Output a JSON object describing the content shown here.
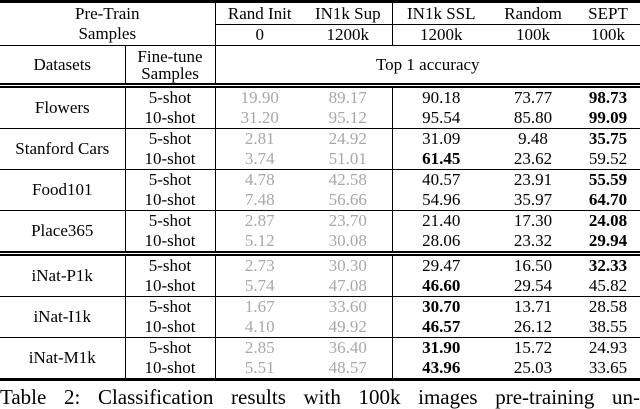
{
  "colors": {
    "text": "#000000",
    "dim_text": "#a8a8a8",
    "rule": "#000000",
    "background": "#ffffff"
  },
  "table": {
    "header": {
      "pretrain_line1": "Pre-Train",
      "pretrain_line2": "Samples",
      "methods": [
        {
          "name": "Rand Init",
          "samples": "0"
        },
        {
          "name": "IN1k Sup",
          "samples": "1200k"
        },
        {
          "name": "IN1k SSL",
          "samples": "1200k"
        },
        {
          "name": "Random",
          "samples": "100k"
        },
        {
          "name": "SEPT",
          "samples": "100k"
        }
      ],
      "datasets_label": "Datasets",
      "finetune_line1": "Fine-tune",
      "finetune_line2": "Samples",
      "metric_label": "Top 1 accuracy"
    },
    "groups": [
      {
        "dataset": "Flowers",
        "double_rule_above": false,
        "rows": [
          {
            "shot": "5-shot",
            "values": [
              "19.90",
              "89.17",
              "90.18",
              "73.77",
              "98.73"
            ],
            "bold_index": 4
          },
          {
            "shot": "10-shot",
            "values": [
              "31.20",
              "95.12",
              "95.54",
              "85.80",
              "99.09"
            ],
            "bold_index": 4
          }
        ]
      },
      {
        "dataset": "Stanford Cars",
        "double_rule_above": false,
        "rows": [
          {
            "shot": "5-shot",
            "values": [
              "2.81",
              "24.92",
              "31.09",
              "9.48",
              "35.75"
            ],
            "bold_index": 4
          },
          {
            "shot": "10-shot",
            "values": [
              "3.74",
              "51.01",
              "61.45",
              "23.62",
              "59.52"
            ],
            "bold_index": 2
          }
        ]
      },
      {
        "dataset": "Food101",
        "double_rule_above": false,
        "rows": [
          {
            "shot": "5-shot",
            "values": [
              "4.78",
              "42.58",
              "40.57",
              "23.91",
              "55.59"
            ],
            "bold_index": 4
          },
          {
            "shot": "10-shot",
            "values": [
              "7.48",
              "56.66",
              "54.96",
              "35.97",
              "64.70"
            ],
            "bold_index": 4
          }
        ]
      },
      {
        "dataset": "Place365",
        "double_rule_above": false,
        "rows": [
          {
            "shot": "5-shot",
            "values": [
              "2.87",
              "23.70",
              "21.40",
              "17.30",
              "24.08"
            ],
            "bold_index": 4
          },
          {
            "shot": "10-shot",
            "values": [
              "5.12",
              "30.08",
              "28.06",
              "23.32",
              "29.94"
            ],
            "bold_index": 4
          }
        ]
      },
      {
        "dataset": "iNat-P1k",
        "double_rule_above": true,
        "rows": [
          {
            "shot": "5-shot",
            "values": [
              "2.73",
              "30.30",
              "29.47",
              "16.50",
              "32.33"
            ],
            "bold_index": 4
          },
          {
            "shot": "10-shot",
            "values": [
              "5.74",
              "47.08",
              "46.60",
              "29.54",
              "45.82"
            ],
            "bold_index": 2
          }
        ]
      },
      {
        "dataset": "iNat-I1k",
        "double_rule_above": false,
        "rows": [
          {
            "shot": "5-shot",
            "values": [
              "1.67",
              "33.60",
              "30.70",
              "13.71",
              "28.58"
            ],
            "bold_index": 2
          },
          {
            "shot": "10-shot",
            "values": [
              "4.10",
              "49.92",
              "46.57",
              "26.12",
              "38.55"
            ],
            "bold_index": 2
          }
        ]
      },
      {
        "dataset": "iNat-M1k",
        "double_rule_above": false,
        "rows": [
          {
            "shot": "5-shot",
            "values": [
              "2.85",
              "36.40",
              "31.90",
              "15.72",
              "24.93"
            ],
            "bold_index": 2
          },
          {
            "shot": "10-shot",
            "values": [
              "5.51",
              "48.57",
              "43.96",
              "25.03",
              "33.65"
            ],
            "bold_index": 2
          }
        ]
      }
    ]
  },
  "caption": "Table 2: Classification results with 100k images pre-training un-"
}
